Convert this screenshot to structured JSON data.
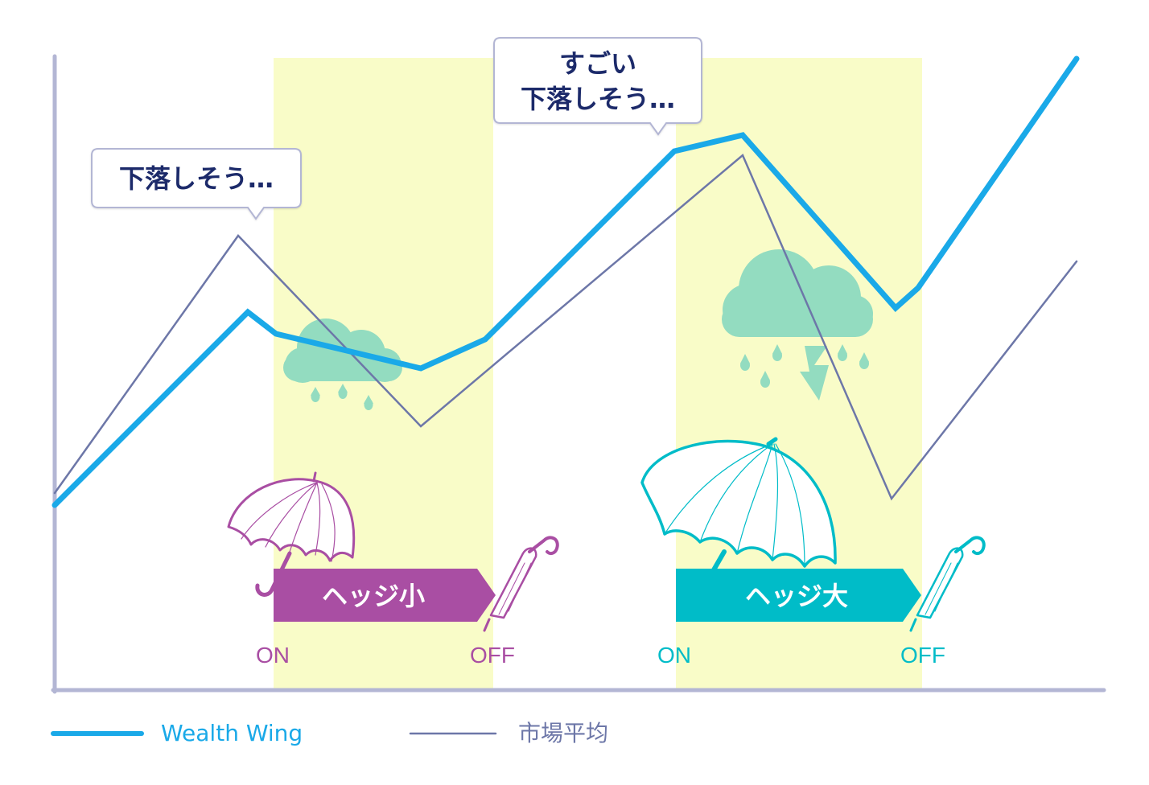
{
  "chart_data": {
    "type": "line",
    "title": "",
    "xlabel": "",
    "ylabel": "",
    "colors": {
      "wealth_wing": "#1aa9e8",
      "market": "#6d77a8",
      "axis": "#b3b6d4",
      "band": "#f9fcc8",
      "hedge_small": "#a94ea3",
      "hedge_large": "#00bcc8",
      "cloud": "#93dcc0",
      "bubble_text": "#1b2a6b"
    },
    "series": [
      {
        "name": "Wealth Wing",
        "color": "#1aa9e8",
        "points": [
          [
            0,
            230
          ],
          [
            240,
            470
          ],
          [
            275,
            443
          ],
          [
            455,
            400
          ],
          [
            535,
            436
          ],
          [
            770,
            670
          ],
          [
            855,
            690
          ],
          [
            1045,
            475
          ],
          [
            1073,
            500
          ],
          [
            1270,
            785
          ]
        ]
      },
      {
        "name": "市場平均",
        "color": "#6d77a8",
        "points": [
          [
            0,
            245
          ],
          [
            228,
            565
          ],
          [
            455,
            328
          ],
          [
            855,
            665
          ],
          [
            1040,
            238
          ],
          [
            1270,
            533
          ]
        ]
      }
    ],
    "hedge_periods": [
      {
        "label": "ヘッジ小",
        "on_label": "ON",
        "off_label": "OFF",
        "color": "#a94ea3",
        "start": 272,
        "end": 545,
        "size": "small"
      },
      {
        "label": "ヘッジ大",
        "on_label": "ON",
        "off_label": "OFF",
        "color": "#00bcc8",
        "start": 772,
        "end": 1078,
        "size": "large"
      }
    ],
    "annotations": [
      {
        "lines": [
          "下落しそう…"
        ]
      },
      {
        "lines": [
          "すごい",
          "下落しそう…"
        ]
      }
    ],
    "legend": [
      {
        "label": "Wealth Wing",
        "color": "#1aa9e8"
      },
      {
        "label": "市場平均",
        "color": "#6d77a8"
      }
    ]
  }
}
